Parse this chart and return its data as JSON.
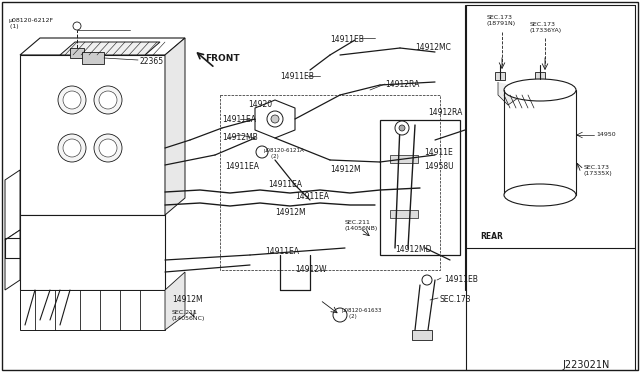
{
  "bg_color": "#ffffff",
  "line_color": "#1a1a1a",
  "diagram_id": "J223021N",
  "font_size": 5.5,
  "font_size_lg": 7.0,
  "font_size_sm": 4.5,
  "labels": {
    "bolt1": "µ08120-6212F\n (1)",
    "part_22365": "22365",
    "front": "FRONT",
    "part_14911EB_a": "14911EB",
    "part_14911EB_b": "14911EB",
    "part_14920": "14920",
    "part_14912MC": "14912MC",
    "part_14912RA": "14912RA",
    "part_14911EA_a": "14911EA",
    "part_14911EA_b": "14911EA",
    "part_14911EA_c": "14911EA",
    "part_14911EA_d": "14911EA",
    "part_14911EA_e": "14911EA",
    "part_14912MB": "14912MB",
    "bolt2": "µ08120-6121A\n    (2)",
    "part_14911E": "14911E",
    "part_14958U": "14958U",
    "part_14912M_a": "14912M",
    "part_14912M_b": "14912M",
    "part_14912MD": "14912MD",
    "part_14912W": "14912W",
    "part_14911EB_c": "14911EB",
    "sec211_nb": "SEC.211\n(14056NB)",
    "sec211_nc": "SEC.211\n(14056NC)",
    "bolt3": "µ08120-61633\n    (2)",
    "sec173_a": "SEC.173",
    "sec173_18791": "SEC.173\n(18791N)",
    "sec173_17336": "SEC.173\n(17336YA)",
    "part_14950": "14950",
    "sec173_17335": "SEC.173\n(17335X)",
    "rear": "REAR"
  }
}
